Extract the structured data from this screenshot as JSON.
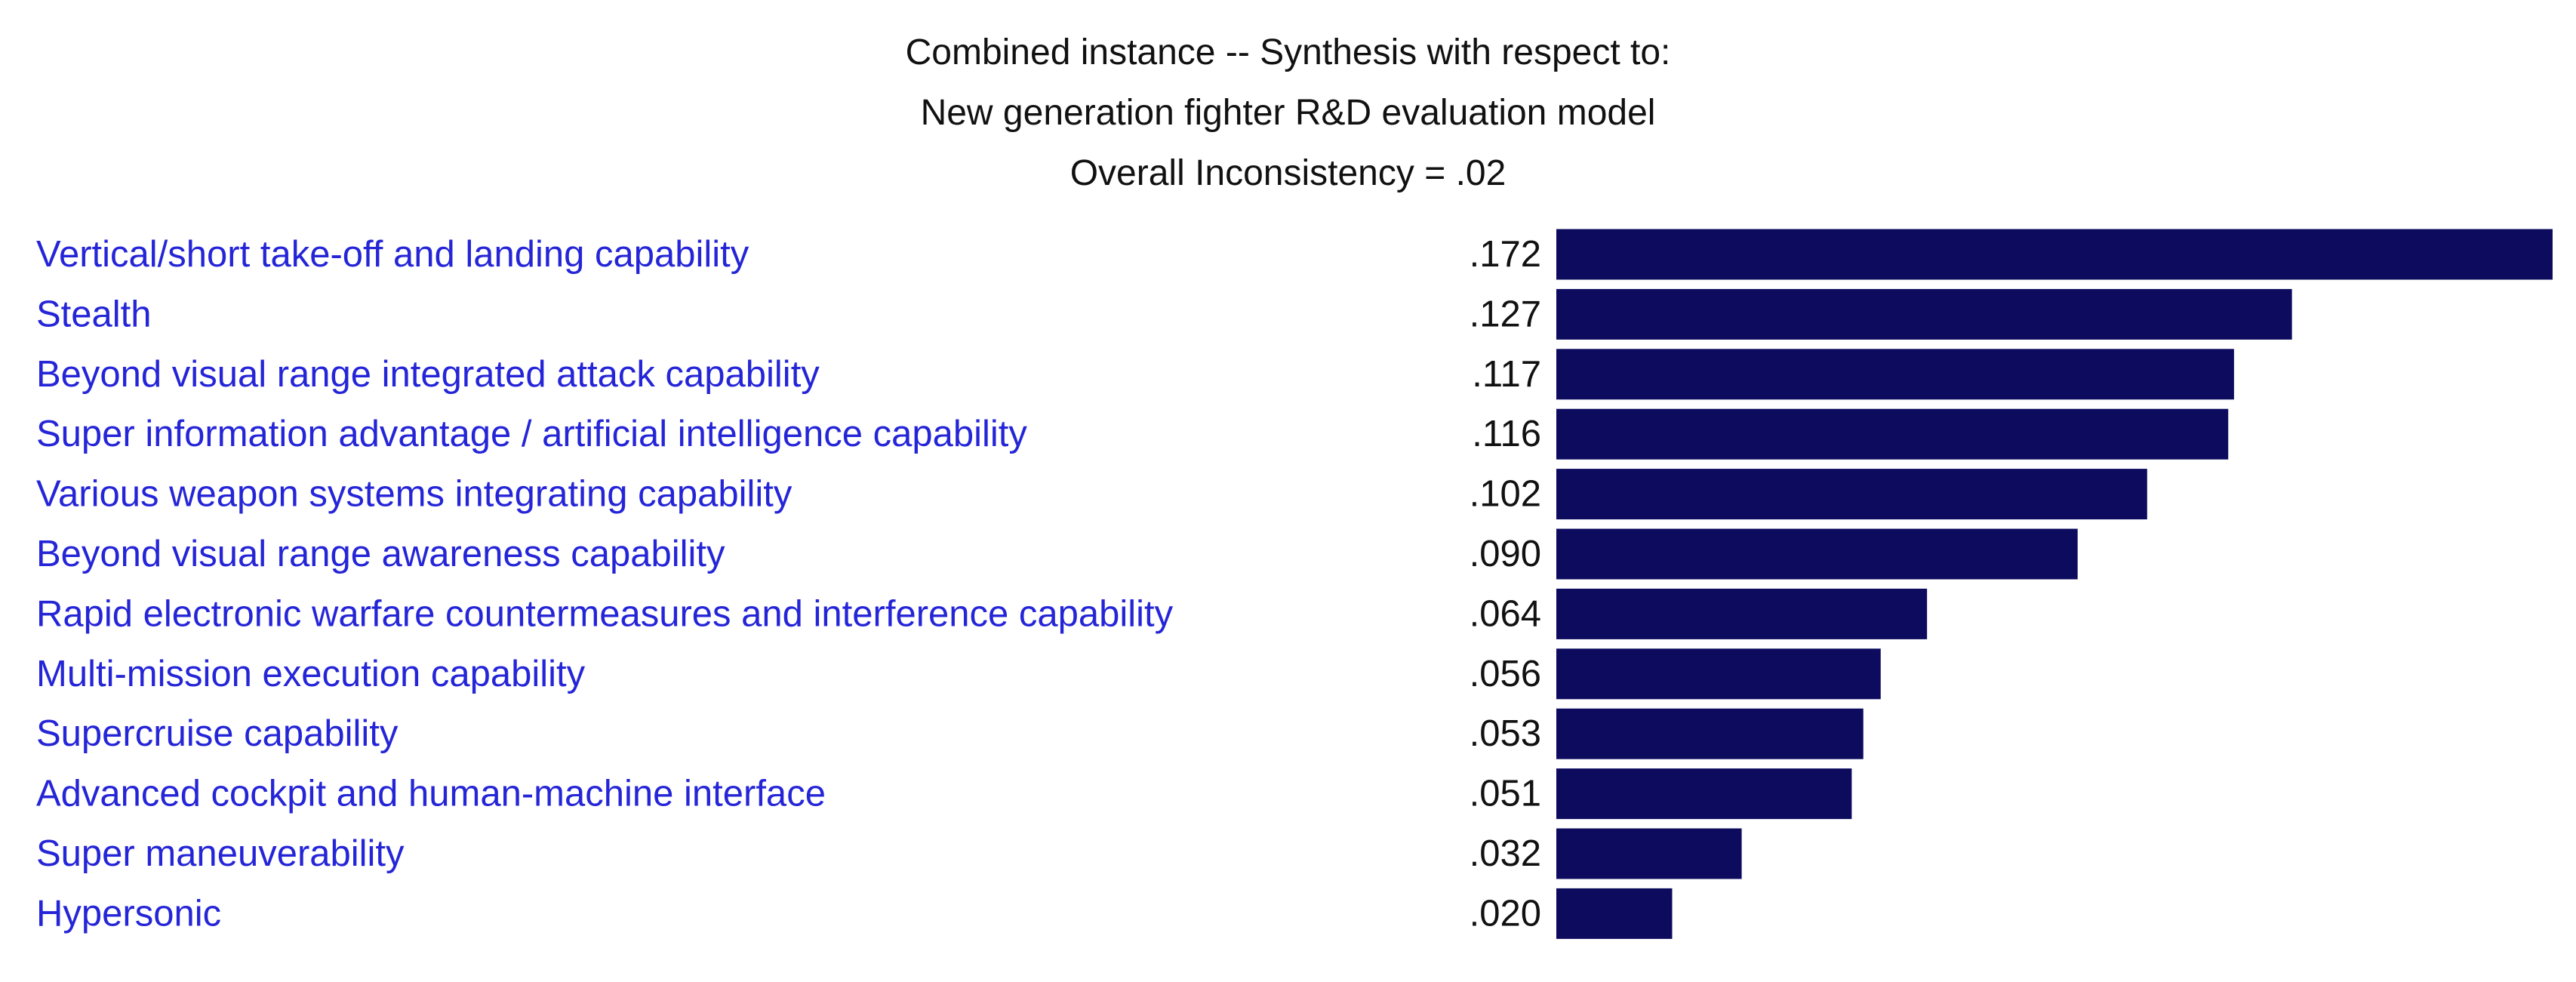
{
  "header": {
    "title_line1": "Combined instance -- Synthesis with respect to:",
    "title_line2": "New generation fighter R&D evaluation model",
    "title_line3": "Overall Inconsistency = .02"
  },
  "chart_data": {
    "type": "bar",
    "orientation": "horizontal",
    "title": "Combined instance -- Synthesis with respect to: New generation fighter R&D evaluation model",
    "subtitle": "Overall Inconsistency = .02",
    "categories": [
      "Vertical/short take-off and landing capability",
      "Stealth",
      "Beyond visual range integrated attack capability",
      "Super information advantage / artificial intelligence capability",
      "Various weapon systems integrating capability",
      "Beyond visual range awareness capability",
      "Rapid electronic warfare countermeasures and interference capability",
      "Multi-mission execution capability",
      "Supercruise capability",
      "Advanced cockpit and human-machine interface",
      "Super maneuverability",
      "Hypersonic"
    ],
    "values": [
      0.172,
      0.127,
      0.117,
      0.116,
      0.102,
      0.09,
      0.064,
      0.056,
      0.053,
      0.051,
      0.032,
      0.02
    ],
    "value_labels": [
      ".172",
      ".127",
      ".117",
      ".116",
      ".102",
      ".090",
      ".064",
      ".056",
      ".053",
      ".051",
      ".032",
      ".020"
    ],
    "xlabel": "",
    "ylabel": "",
    "xlim": [
      0,
      0.172
    ],
    "grid": false,
    "legend": "none",
    "colors": {
      "bar": "#0c0b5e",
      "category_label": "#2525d8",
      "value_label": "#111111"
    }
  }
}
